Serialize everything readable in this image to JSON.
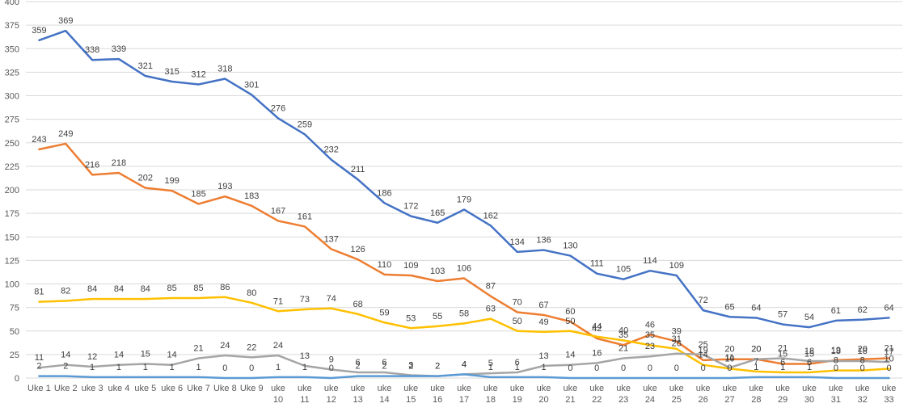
{
  "chart_data": {
    "type": "line",
    "title": "",
    "xlabel": "",
    "ylabel": "",
    "ylim": [
      0,
      400
    ],
    "ytick_step": 25,
    "grid": true,
    "legend": "none",
    "categories": [
      "Uke 1",
      "Uke 2",
      "uke 3",
      "uke 4",
      "uke 5",
      "uke 6",
      "Uke 7",
      "Uke 8",
      "Uke 9",
      "uke 10",
      "uke 11",
      "uke 12",
      "uke 13",
      "uke 14",
      "uke 15",
      "uke 16",
      "uke 17",
      "uke 18",
      "uke 19",
      "uke 20",
      "uke 21",
      "uke 22",
      "uke 23",
      "uke 24",
      "uke 25",
      "uke 26",
      "uke 27",
      "uke 28",
      "uke 29",
      "uke 30",
      "uke 31",
      "uke 32",
      "uke 33"
    ],
    "series": [
      {
        "color": "#4472c4",
        "values": [
          359,
          369,
          338,
          339,
          321,
          315,
          312,
          318,
          301,
          276,
          259,
          232,
          211,
          186,
          172,
          165,
          179,
          162,
          134,
          136,
          130,
          111,
          105,
          114,
          109,
          72,
          65,
          64,
          57,
          54,
          61,
          62,
          64
        ]
      },
      {
        "color": "#ed7d31",
        "values": [
          243,
          249,
          216,
          218,
          202,
          199,
          185,
          193,
          183,
          167,
          161,
          137,
          126,
          110,
          109,
          103,
          106,
          87,
          70,
          67,
          60,
          42,
          35,
          46,
          39,
          19,
          20,
          20,
          15,
          15,
          19,
          20,
          21
        ]
      },
      {
        "color": "#ffc000",
        "values": [
          81,
          82,
          84,
          84,
          84,
          85,
          85,
          86,
          80,
          71,
          73,
          74,
          68,
          59,
          53,
          55,
          58,
          63,
          50,
          49,
          50,
          44,
          40,
          35,
          31,
          14,
          10,
          7,
          6,
          6,
          8,
          8,
          10
        ]
      },
      {
        "color": "#a5a5a5",
        "values": [
          11,
          14,
          12,
          14,
          15,
          14,
          21,
          24,
          22,
          24,
          13,
          9,
          6,
          6,
          3,
          2,
          4,
          5,
          6,
          13,
          14,
          16,
          21,
          23,
          26,
          25,
          11,
          20,
          21,
          18,
          18,
          18,
          17
        ]
      },
      {
        "color": "#5b9bd5",
        "values": [
          2,
          2,
          1,
          1,
          1,
          1,
          1,
          0,
          0,
          1,
          1,
          0,
          2,
          2,
          2,
          2,
          4,
          1,
          1,
          1,
          0,
          0,
          0,
          0,
          0,
          0,
          0,
          1,
          1,
          1,
          0,
          0,
          0
        ]
      }
    ]
  }
}
